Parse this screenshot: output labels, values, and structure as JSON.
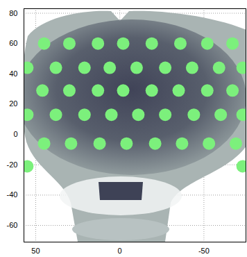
{
  "chart_data": {
    "type": "scatter",
    "x": [
      45,
      30,
      13,
      -2,
      -19,
      -36,
      -52,
      -67,
      55,
      38,
      21,
      6,
      -10,
      -27,
      -43,
      -59,
      -73,
      46,
      30,
      13,
      -2,
      -19,
      -35,
      -52,
      -67,
      55,
      38,
      21,
      5,
      -11,
      -27,
      -44,
      -60,
      -73,
      45,
      29,
      12,
      -4,
      -21,
      -37,
      -53,
      -69,
      55,
      -73
    ],
    "y": [
      60,
      60,
      60,
      60,
      60,
      60,
      60,
      60,
      44,
      44,
      44,
      44,
      44,
      44,
      44,
      44,
      44,
      29,
      29,
      29,
      29,
      29,
      29,
      29,
      29,
      13,
      13,
      13,
      13,
      13,
      13,
      13,
      13,
      13,
      -6,
      -6,
      -6,
      -6,
      -6,
      -6,
      -6,
      -6,
      -21,
      -21
    ],
    "color": "#7cf07c",
    "marker": "circle",
    "xlim": [
      57,
      -75
    ],
    "xticks": [
      50,
      0,
      -50
    ],
    "ylim": [
      -71,
      83
    ],
    "yticks": [
      -60,
      -40,
      -20,
      0,
      20,
      40,
      60,
      80
    ],
    "grid": true
  }
}
